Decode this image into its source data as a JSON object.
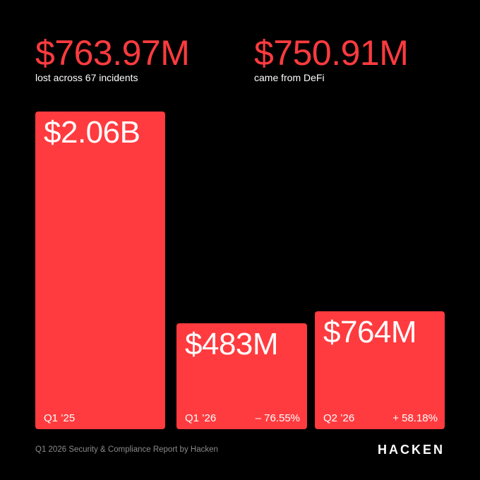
{
  "headline": {
    "left": {
      "value": "$763.97M",
      "caption": "lost across 67 incidents"
    },
    "right": {
      "value": "$750.91M",
      "caption": "came from DeFi"
    }
  },
  "chart_data": {
    "type": "bar",
    "categories": [
      "Q1 ’25",
      "Q1 ’26",
      "Q2 ’26"
    ],
    "values": [
      2060,
      483,
      764
    ],
    "unit": "$M",
    "value_labels": [
      "$2.06B",
      "$483M",
      "$764M"
    ],
    "change_labels": [
      "",
      "– 76.55%",
      "+ 58.18%"
    ],
    "ylim": [
      0,
      2060
    ],
    "grid": false,
    "color": "#ff3b3f"
  },
  "footer": {
    "report": "Q1 2026 Security & Compliance Report by Hacken",
    "brand": "HACKEN"
  },
  "colors": {
    "background": "#000000",
    "accent": "#ff3b3f",
    "muted_text": "#8a8a8a"
  }
}
